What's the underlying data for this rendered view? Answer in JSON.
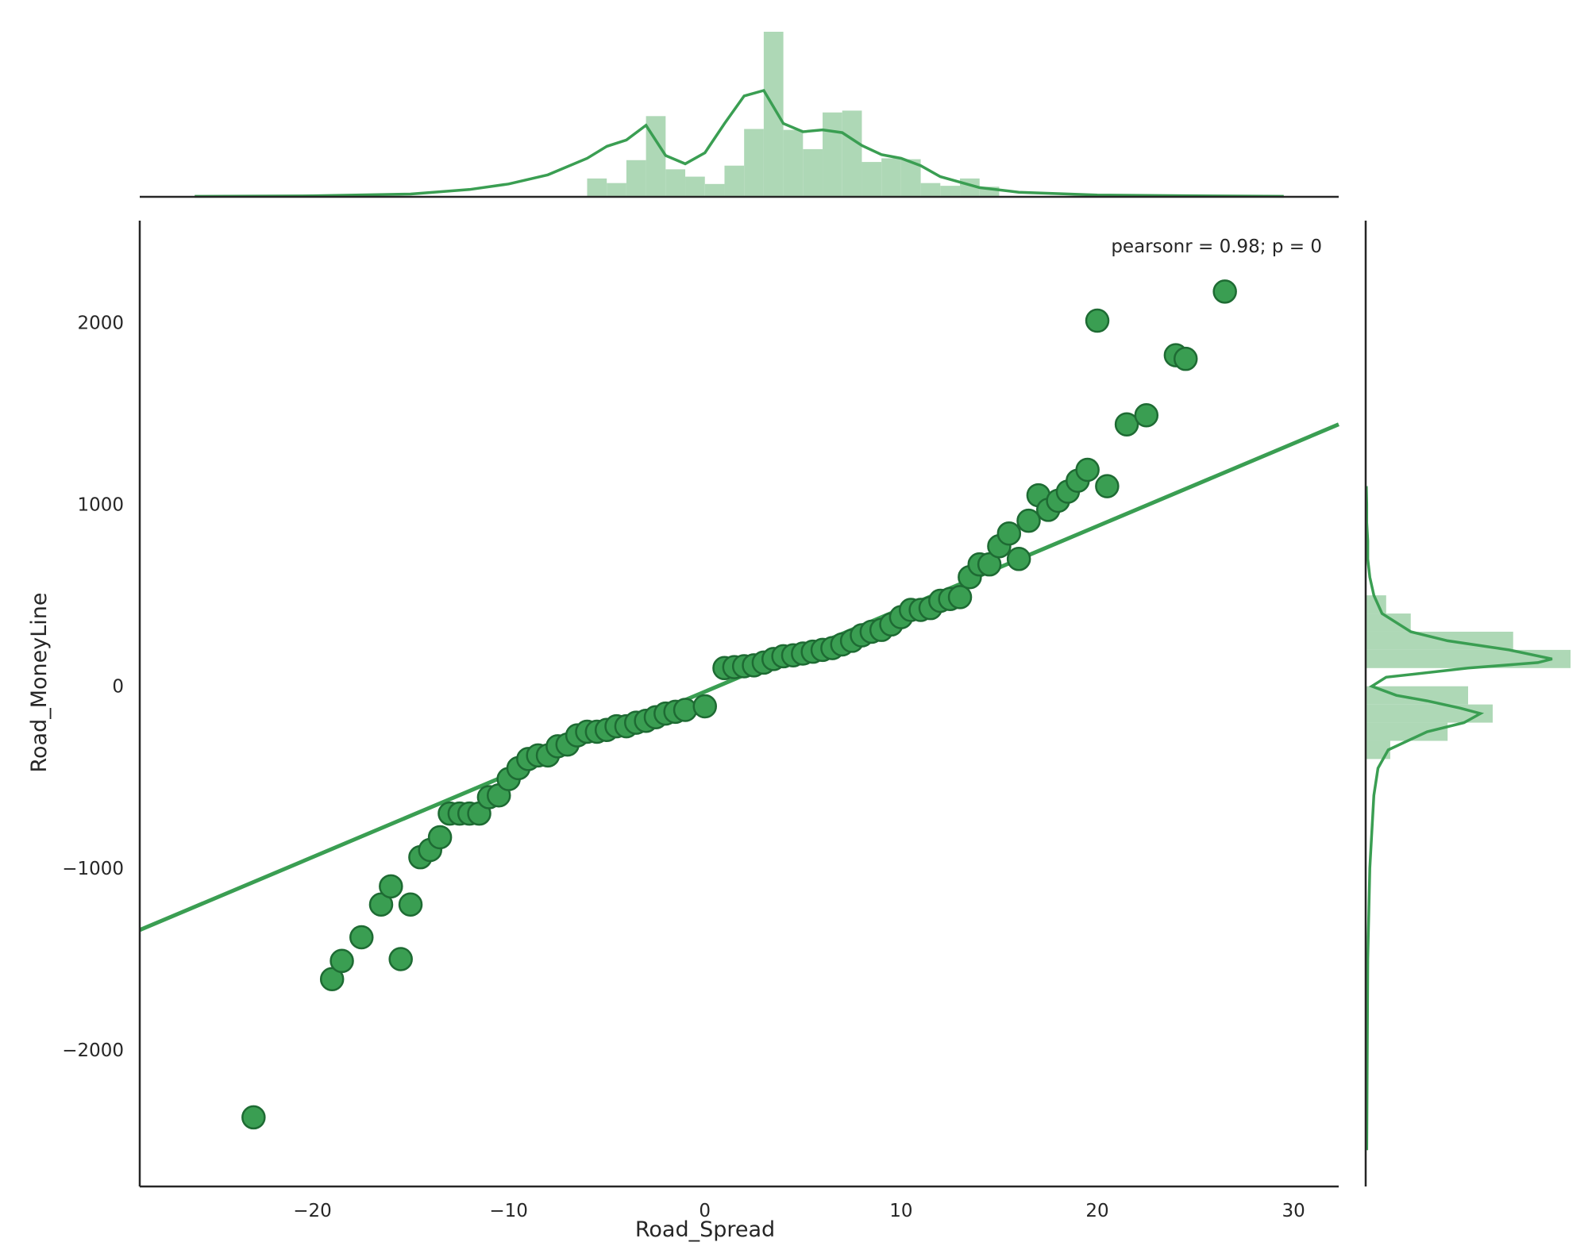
{
  "chart_data": {
    "type": "scatter",
    "xlabel": "Road_Spread",
    "ylabel": "Road_MoneyLine",
    "annotation": "pearsonr = 0.98; p = 0",
    "xlim": [
      -28.8,
      32.3
    ],
    "ylim": [
      -2750,
      2560
    ],
    "x_ticks": [
      -20,
      -10,
      0,
      10,
      20,
      30
    ],
    "y_ticks": [
      -2000,
      -1000,
      0,
      1000,
      2000
    ],
    "x_tick_labels": [
      "−20",
      "−10",
      "0",
      "10",
      "20",
      "30"
    ],
    "y_tick_labels": [
      "−2000",
      "−1000",
      "0",
      "1000",
      "2000"
    ],
    "grid": false,
    "colors": {
      "point_fill": "#3a9e52",
      "point_edge": "#1e6b33",
      "line": "#3a9e52",
      "hist_fill": "#aed8b6",
      "kde": "#3a9e52",
      "axis": "#262626"
    },
    "points": [
      [
        -23.0,
        -2370
      ],
      [
        -19.0,
        -1610
      ],
      [
        -18.5,
        -1510
      ],
      [
        -17.5,
        -1380
      ],
      [
        -16.5,
        -1200
      ],
      [
        -16.0,
        -1100
      ],
      [
        -15.5,
        -1500
      ],
      [
        -15.0,
        -1200
      ],
      [
        -14.5,
        -940
      ],
      [
        -14.0,
        -900
      ],
      [
        -13.5,
        -830
      ],
      [
        -13.0,
        -700
      ],
      [
        -12.5,
        -700
      ],
      [
        -12.0,
        -700
      ],
      [
        -11.5,
        -700
      ],
      [
        -11.0,
        -610
      ],
      [
        -10.5,
        -600
      ],
      [
        -10.0,
        -510
      ],
      [
        -9.5,
        -450
      ],
      [
        -9.0,
        -400
      ],
      [
        -8.5,
        -380
      ],
      [
        -8.0,
        -380
      ],
      [
        -7.5,
        -330
      ],
      [
        -7.0,
        -320
      ],
      [
        -6.5,
        -270
      ],
      [
        -6.0,
        -250
      ],
      [
        -5.5,
        -250
      ],
      [
        -5.0,
        -240
      ],
      [
        -4.5,
        -220
      ],
      [
        -4.0,
        -220
      ],
      [
        -3.5,
        -200
      ],
      [
        -3.0,
        -190
      ],
      [
        -2.5,
        -170
      ],
      [
        -2.0,
        -150
      ],
      [
        -1.5,
        -140
      ],
      [
        -1.0,
        -130
      ],
      [
        0.0,
        -110
      ],
      [
        1.0,
        100
      ],
      [
        1.5,
        105
      ],
      [
        2.0,
        110
      ],
      [
        2.5,
        115
      ],
      [
        3.0,
        130
      ],
      [
        3.5,
        150
      ],
      [
        4.0,
        165
      ],
      [
        4.5,
        170
      ],
      [
        5.0,
        180
      ],
      [
        5.5,
        190
      ],
      [
        6.0,
        200
      ],
      [
        6.5,
        210
      ],
      [
        7.0,
        230
      ],
      [
        7.5,
        250
      ],
      [
        8.0,
        280
      ],
      [
        8.5,
        300
      ],
      [
        9.0,
        310
      ],
      [
        9.5,
        340
      ],
      [
        10.0,
        380
      ],
      [
        10.5,
        420
      ],
      [
        11.0,
        420
      ],
      [
        11.5,
        430
      ],
      [
        12.0,
        470
      ],
      [
        12.5,
        480
      ],
      [
        13.0,
        490
      ],
      [
        13.5,
        600
      ],
      [
        14.0,
        670
      ],
      [
        14.5,
        670
      ],
      [
        15.0,
        770
      ],
      [
        15.5,
        840
      ],
      [
        16.0,
        700
      ],
      [
        16.5,
        910
      ],
      [
        17.0,
        1050
      ],
      [
        17.5,
        970
      ],
      [
        18.0,
        1020
      ],
      [
        18.5,
        1070
      ],
      [
        19.0,
        1130
      ],
      [
        19.5,
        1190
      ],
      [
        20.0,
        2010
      ],
      [
        20.5,
        1100
      ],
      [
        21.5,
        1440
      ],
      [
        22.5,
        1490
      ],
      [
        24.0,
        1820
      ],
      [
        24.5,
        1800
      ],
      [
        26.5,
        2170
      ]
    ],
    "regression_line": {
      "x": [
        -28.8,
        32.3
      ],
      "y": [
        -1340,
        1440
      ]
    },
    "x_marginal": {
      "bin_edges": [
        -6.0,
        -5.0,
        -4.0,
        -3.0,
        -2.0,
        -1.0,
        0.0,
        1.0,
        2.0,
        3.0,
        4.0,
        5.0,
        6.0,
        7.0,
        8.0,
        9.0,
        10.0,
        11.0,
        12.0,
        13.0,
        14.0,
        15.0
      ],
      "counts": [
        20,
        15,
        40,
        88,
        30,
        22,
        14,
        34,
        74,
        180,
        73,
        52,
        92,
        94,
        38,
        42,
        41,
        15,
        12,
        20,
        11
      ],
      "kde_x": [
        -26,
        -20,
        -15,
        -12,
        -10,
        -8,
        -6,
        -5,
        -4,
        -3,
        -2,
        -1,
        0,
        1,
        2,
        3,
        4,
        5,
        6,
        7,
        8,
        9,
        10,
        11,
        12,
        14,
        16,
        20,
        25,
        29.5
      ],
      "kde_y": [
        0.5,
        1,
        3,
        8,
        14,
        24,
        42,
        55,
        62,
        78,
        45,
        36,
        48,
        80,
        110,
        116,
        80,
        71,
        73,
        70,
        56,
        46,
        42,
        34,
        22,
        10,
        5,
        2,
        1,
        0.5
      ]
    },
    "y_marginal": {
      "bin_edges": [
        -400,
        -300,
        -200,
        -100,
        0,
        100,
        200,
        300,
        400,
        500
      ],
      "counts": [
        12,
        40,
        62,
        50,
        0,
        100,
        72,
        22,
        10
      ],
      "kde_y": [
        -2550,
        -1500,
        -1000,
        -600,
        -450,
        -350,
        -250,
        -200,
        -150,
        -120,
        -80,
        -50,
        0,
        50,
        100,
        130,
        150,
        200,
        250,
        300,
        400,
        500,
        600,
        700,
        800,
        900,
        1000,
        1100
      ],
      "kde_x": [
        0.5,
        1,
        2,
        4,
        6,
        11,
        30,
        48,
        56,
        46,
        30,
        15,
        3,
        10,
        50,
        84,
        91,
        70,
        40,
        22,
        8,
        4,
        2,
        1,
        1,
        0.5,
        0.5,
        0.3
      ]
    }
  }
}
